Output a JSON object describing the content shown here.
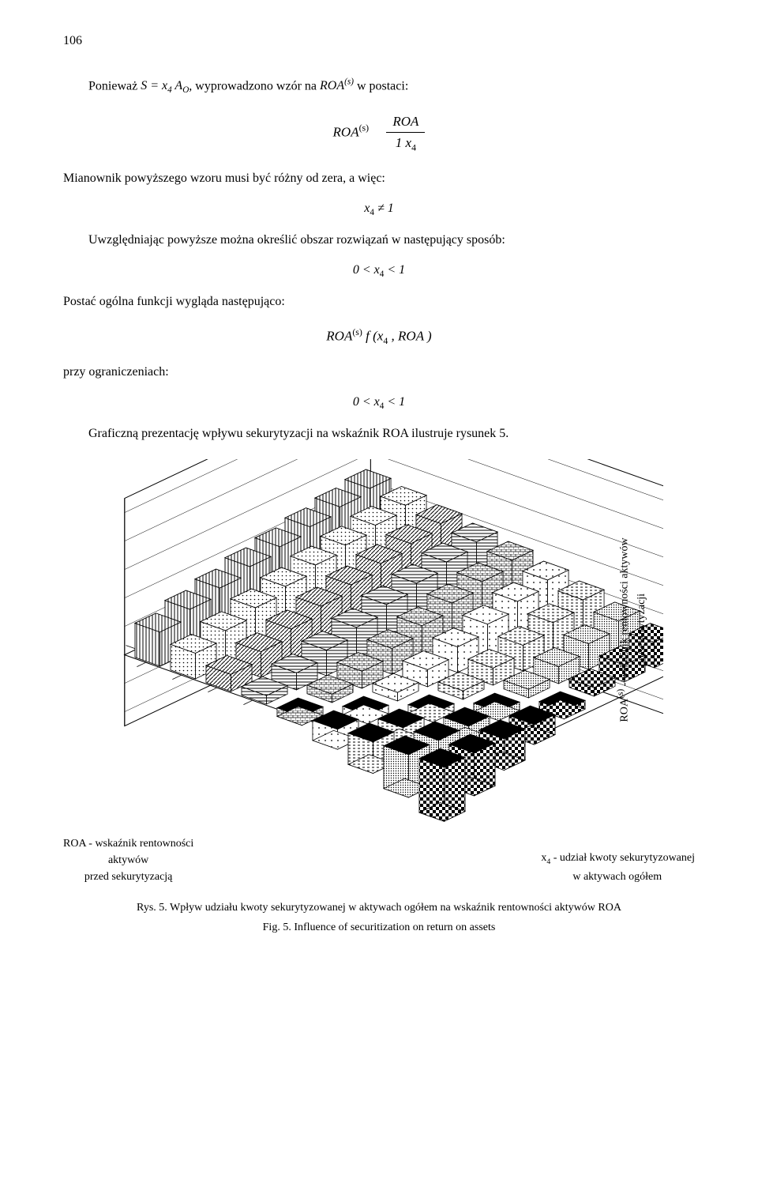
{
  "page_number": "106",
  "text": {
    "p1_a": "Ponieważ ",
    "p1_b": ", wyprowadzono wzór na ",
    "p1_c": " w postaci:",
    "p2": "Mianownik powyższego wzoru musi być różny od zera, a więc:",
    "p3": "Uwzględniając powyższe można określić obszar rozwiązań w następujący sposób:",
    "p4": "Postać ogólna funkcji wygląda następująco:",
    "p5": "przy ograniczeniach:",
    "p6": "Graficzną prezentację wpływu sekurytyzacji na wskaźnik ROA ilustruje rysunek 5."
  },
  "formula": {
    "f1_var": "S = x",
    "f1_sub": "4",
    "f1_after": " A",
    "f1_aosub": "O",
    "f1_roa": "ROA",
    "f1_sup": "(s)",
    "f2_lhs": "ROA",
    "f2_sup": "(s)",
    "f2_num": "ROA",
    "f2_den_a": "1  ",
    "f2_den_b": "x",
    "f2_den_sub": "4",
    "cond1": "x",
    "cond1_sub": "4",
    "cond1_rhs": " ≠ 1",
    "cond2_a": "0 < ",
    "cond2_x": "x",
    "cond2_sub": "4",
    "cond2_b": " < 1",
    "f3_lhs": "ROA",
    "f3_sup": "(s)",
    "f3_rhs_a": "   f (x",
    "f3_rhs_sub": "4",
    "f3_rhs_b": " , ROA )"
  },
  "chart": {
    "type": "3d-bar-grid",
    "background_color": "#ffffff",
    "grid_color": "#000000",
    "bar_edge_color": "#000000",
    "nx": 9,
    "ny": 8,
    "y_axis_label_right_line1": "ROA",
    "y_axis_label_right_sup": "(s)",
    "y_axis_label_right_line1b": " - wskaźnik rentowności aktywów",
    "y_axis_label_right_line2": "po sekurytyzacji",
    "legend_left_line1": "ROA - wskaźnik rentowności",
    "legend_left_line2": "aktywów",
    "legend_left_line3": "przed sekurytyzacją",
    "legend_right_line1_a": "x",
    "legend_right_sub": "4",
    "legend_right_line1_b": " - udział kwoty sekurytyzowanej",
    "legend_right_line2": "w aktywach ogółem",
    "heights": [
      [
        55,
        52,
        48,
        44,
        40,
        35,
        30,
        24,
        18
      ],
      [
        52,
        48,
        44,
        40,
        35,
        30,
        24,
        18,
        12
      ],
      [
        48,
        44,
        40,
        35,
        30,
        24,
        18,
        12,
        6
      ],
      [
        44,
        40,
        35,
        30,
        24,
        18,
        12,
        6,
        -6
      ],
      [
        40,
        35,
        30,
        24,
        18,
        12,
        6,
        -6,
        -14
      ],
      [
        35,
        30,
        24,
        18,
        12,
        6,
        -6,
        -14,
        -22
      ],
      [
        30,
        24,
        18,
        12,
        6,
        -6,
        -14,
        -22,
        -30
      ],
      [
        24,
        18,
        12,
        6,
        -6,
        -14,
        -22,
        -30,
        -38
      ]
    ],
    "patterns": [
      "vstripe",
      "dots",
      "diag",
      "hstripe",
      "brick",
      "sparse",
      "dash",
      "dense",
      "checker"
    ]
  },
  "caption": {
    "pl": "Rys. 5. Wpływ udziału kwoty sekurytyzowanej w aktywach ogółem na wskaźnik rentowności aktywów ROA",
    "en": "Fig. 5. Influence of securitization on return on assets"
  }
}
